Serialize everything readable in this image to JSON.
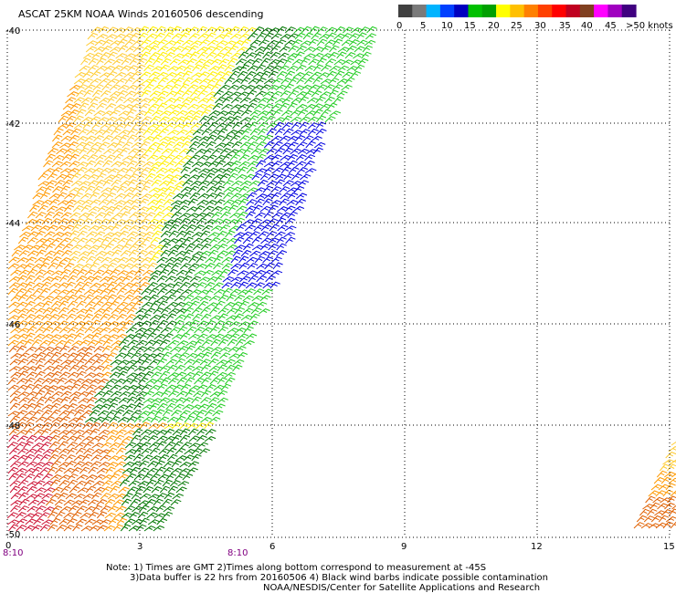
{
  "title": "ASCAT 25KM NOAA Winds 20160506 descending",
  "colorbar": {
    "colors": [
      "#404040",
      "#7a7a7a",
      "#00b4ff",
      "#0040ff",
      "#0000c0",
      "#00c000",
      "#00a000",
      "#ffff00",
      "#ffc000",
      "#ff8000",
      "#ff4000",
      "#ff0000",
      "#c00020",
      "#804020",
      "#ff00ff",
      "#a000c0",
      "#400080"
    ],
    "labels": [
      "0",
      "5",
      "10",
      "15",
      "20",
      "25",
      "30",
      "35",
      "40",
      "45",
      ">50 knots"
    ]
  },
  "axes": {
    "lat_labels": [
      "-40",
      "-42",
      "-44",
      "-46",
      "-48",
      "-50"
    ],
    "lon_labels": [
      "0",
      "3",
      "6",
      "9",
      "12",
      "15"
    ],
    "time_labels": [
      "8:10",
      "8:10"
    ]
  },
  "notes": [
    "Note: 1) Times are GMT 2)Times along bottom correspond to measurement at -45S",
    "3)Data buffer is 22 hrs from 20160506 4) Black wind barbs indicate possible contamination",
    "NOAA/NESDIS/Center for Satellite Applications and Research"
  ],
  "wind_colors": {
    "blue": "#0000e0",
    "light_green": "#22cc22",
    "dark_green": "#007700",
    "yellow": "#ffee00",
    "light_orange": "#ffcc33",
    "orange": "#ff9900",
    "dark_orange": "#e06000",
    "red": "#cc1133"
  }
}
